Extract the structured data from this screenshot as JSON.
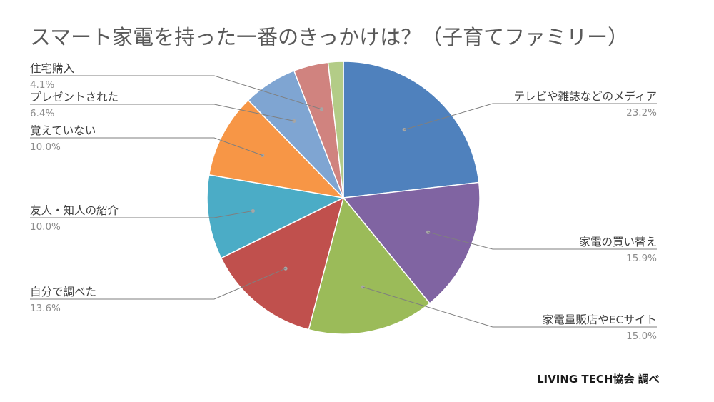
{
  "chart_data": {
    "type": "pie",
    "title": "スマート家電を持った一番のきっかけは？（子育てファミリー）",
    "slices": [
      {
        "label": "テレビや雑誌などのメディア",
        "value": 23.2,
        "display": "23.2%",
        "color": "#4f81bd"
      },
      {
        "label": "家電の買い替え",
        "value": 15.9,
        "display": "15.9%",
        "color": "#8064a2"
      },
      {
        "label": "家電量販店やECサイト",
        "value": 15.0,
        "display": "15.0%",
        "color": "#9bbb59"
      },
      {
        "label": "自分で調べた",
        "value": 13.6,
        "display": "13.6%",
        "color": "#c0504d"
      },
      {
        "label": "友人・知人の紹介",
        "value": 10.0,
        "display": "10.0%",
        "color": "#4bacc6"
      },
      {
        "label": "覚えていない",
        "value": 10.0,
        "display": "10.0%",
        "color": "#f79646"
      },
      {
        "label": "プレゼントされた",
        "value": 6.4,
        "display": "6.4%",
        "color": "#7fa5d2"
      },
      {
        "label": "住宅購入",
        "value": 4.1,
        "display": "4.1%",
        "color": "#d0837f"
      },
      {
        "label": "",
        "value": 1.8,
        "display": "",
        "color": "#b3cc87"
      }
    ],
    "start_angle": "12 o'clock",
    "direction": "clockwise"
  },
  "source": "LIVING TECH協会 調べ"
}
